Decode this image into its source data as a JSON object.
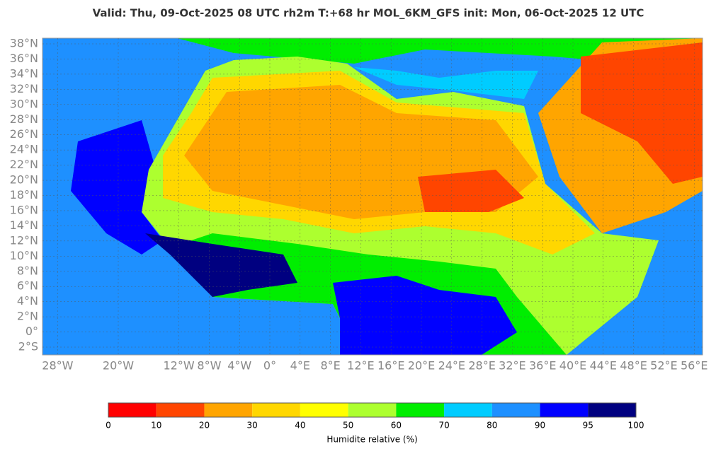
{
  "map": {
    "title": "Valid: Thu, 09-Oct-2025   08 UTC   rh2m   T:+68 hr   MOL_6KM_GFS      init: Mon, 06-Oct-2025   12 UTC",
    "lat_ticks": [
      {
        "value": 38,
        "label": "38°N"
      },
      {
        "value": 36,
        "label": "36°N"
      },
      {
        "value": 34,
        "label": "34°N"
      },
      {
        "value": 32,
        "label": "32°N"
      },
      {
        "value": 30,
        "label": "30°N"
      },
      {
        "value": 28,
        "label": "28°N"
      },
      {
        "value": 26,
        "label": "26°N"
      },
      {
        "value": 24,
        "label": "24°N"
      },
      {
        "value": 22,
        "label": "22°N"
      },
      {
        "value": 20,
        "label": "20°N"
      },
      {
        "value": 18,
        "label": "18°N"
      },
      {
        "value": 16,
        "label": "16°N"
      },
      {
        "value": 14,
        "label": "14°N"
      },
      {
        "value": 12,
        "label": "12°N"
      },
      {
        "value": 10,
        "label": "10°N"
      },
      {
        "value": 8,
        "label": "8°N"
      },
      {
        "value": 6,
        "label": "6°N"
      },
      {
        "value": 4,
        "label": "4°N"
      },
      {
        "value": 2,
        "label": "2°N"
      },
      {
        "value": 0,
        "label": "0°"
      },
      {
        "value": -2,
        "label": "2°S"
      }
    ],
    "lon_ticks": [
      {
        "value": -28,
        "label": "28°W"
      },
      {
        "value": -20,
        "label": "20°W"
      },
      {
        "value": -12,
        "label": "12°W"
      },
      {
        "value": -8,
        "label": "8°W"
      },
      {
        "value": -4,
        "label": "4°W"
      },
      {
        "value": 0,
        "label": "0°"
      },
      {
        "value": 4,
        "label": "4°E"
      },
      {
        "value": 8,
        "label": "8°E"
      },
      {
        "value": 12,
        "label": "12°E"
      },
      {
        "value": 16,
        "label": "16°E"
      },
      {
        "value": 20,
        "label": "20°E"
      },
      {
        "value": 24,
        "label": "24°E"
      },
      {
        "value": 28,
        "label": "28°E"
      },
      {
        "value": 32,
        "label": "32°E"
      },
      {
        "value": 36,
        "label": "36°E"
      },
      {
        "value": 40,
        "label": "40°E"
      },
      {
        "value": 44,
        "label": "44°E"
      },
      {
        "value": 48,
        "label": "48°E"
      },
      {
        "value": 52,
        "label": "52°E"
      },
      {
        "value": 56,
        "label": "56°E"
      }
    ],
    "colorbar": {
      "levels": [
        0,
        10,
        20,
        30,
        40,
        50,
        60,
        70,
        80,
        90,
        95,
        100
      ],
      "colors": [
        "#ff0000",
        "#ff4500",
        "#ffa500",
        "#ffd700",
        "#ffff00",
        "#adff2f",
        "#00ee00",
        "#00ccff",
        "#1e90ff",
        "#0000ff",
        "#000080"
      ],
      "label": "Humidite relative (%)"
    }
  }
}
